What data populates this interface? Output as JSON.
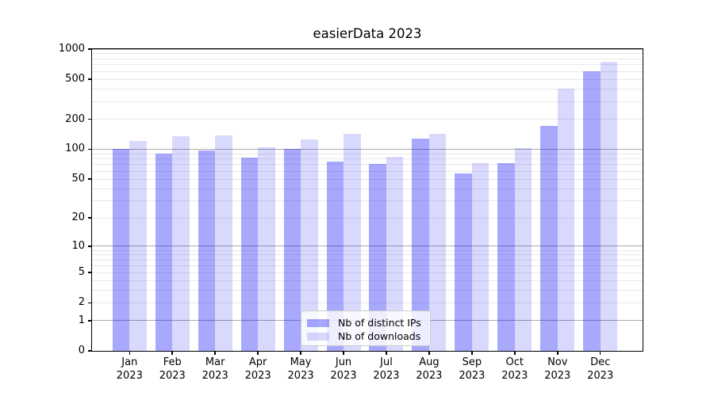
{
  "title": "easierData 2023",
  "chart_data": {
    "type": "bar",
    "yscale": "symlog",
    "title": "easierData 2023",
    "categories": [
      "Jan",
      "Feb",
      "Mar",
      "Apr",
      "May",
      "Jun",
      "Jul",
      "Aug",
      "Sep",
      "Oct",
      "Nov",
      "Dec"
    ],
    "category_year": "2023",
    "series": [
      {
        "name": "Nb of distinct IPs",
        "color": "rgba(0,0,250,0.34)",
        "values": [
          100,
          91,
          98,
          82,
          100,
          75,
          71,
          128,
          57,
          73,
          170,
          598
        ]
      },
      {
        "name": "Nb of downloads",
        "color": "rgba(0,0,250,0.15)",
        "values": [
          122,
          135,
          137,
          104,
          126,
          142,
          84,
          144,
          72,
          102,
          404,
          747
        ]
      }
    ],
    "yticks": [
      1000,
      500,
      200,
      100,
      50,
      20,
      10,
      5,
      2,
      1,
      0
    ],
    "ylim": [
      0,
      1000
    ],
    "grid": "both",
    "legend_position": "lower center"
  },
  "colors": {
    "major_grid": "#ababab",
    "minor_grid": "#e8e8e8",
    "axis": "#000000",
    "legend_border": "#cccccc"
  }
}
